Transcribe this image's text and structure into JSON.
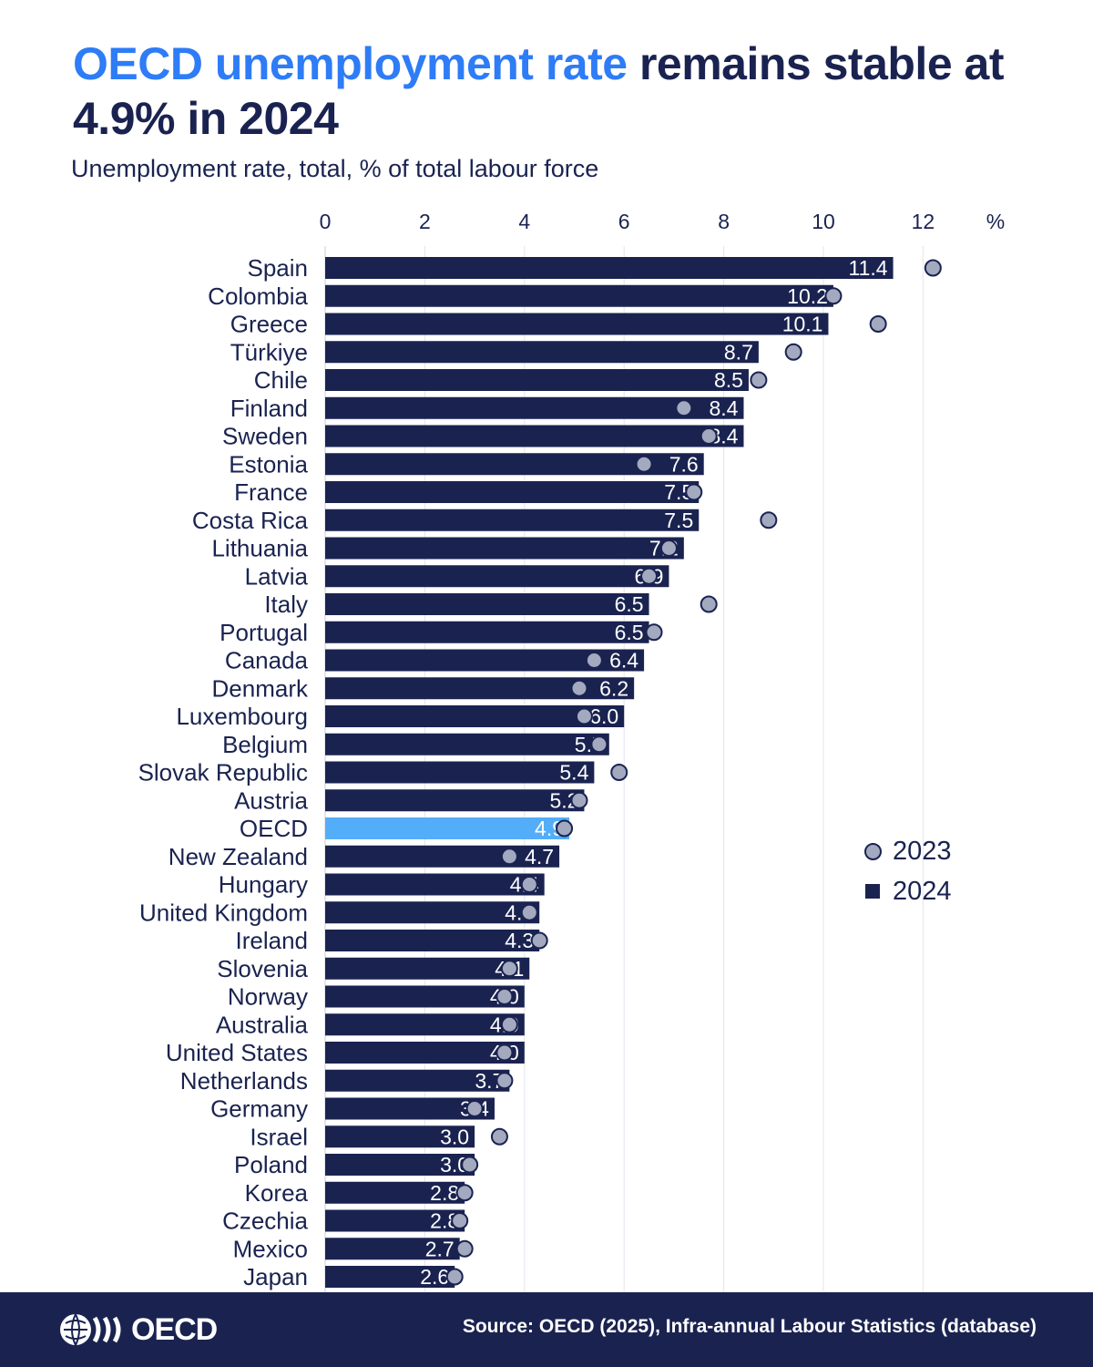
{
  "header": {
    "title_accent": "OECD unemployment rate",
    "title_rest": " remains stable at 4.9% in 2024",
    "subtitle": "Unemployment rate, total, % of total labour force"
  },
  "legend": {
    "item_2023": "2023",
    "item_2024": "2024"
  },
  "footer": {
    "logo_text": "OECD",
    "source": "Source: OECD (2025), Infra-annual Labour Statistics (database)"
  },
  "colors": {
    "bar": "#1a2350",
    "highlight_bar": "#54adf8",
    "dot_fill": "#a3a9bf",
    "accent": "#2e7cf6",
    "footer_bg": "#1a2350"
  },
  "chart_data": {
    "type": "bar",
    "orientation": "horizontal",
    "unit_label": "%",
    "xlim": [
      0,
      12
    ],
    "xticks": [
      0,
      2,
      4,
      6,
      8,
      10,
      12
    ],
    "grid": true,
    "legend_position": "right",
    "highlight": "OECD",
    "categories": [
      "Spain",
      "Colombia",
      "Greece",
      "Türkiye",
      "Chile",
      "Finland",
      "Sweden",
      "Estonia",
      "France",
      "Costa Rica",
      "Lithuania",
      "Latvia",
      "Italy",
      "Portugal",
      "Canada",
      "Denmark",
      "Luxembourg",
      "Belgium",
      "Slovak Republic",
      "Austria",
      "OECD",
      "New Zealand",
      "Hungary",
      "United Kingdom",
      "Ireland",
      "Slovenia",
      "Norway",
      "Australia",
      "United States",
      "Netherlands",
      "Germany",
      "Israel",
      "Poland",
      "Korea",
      "Czechia",
      "Mexico",
      "Japan"
    ],
    "series": [
      {
        "name": "2024",
        "kind": "bar",
        "values": [
          11.4,
          10.2,
          10.1,
          8.7,
          8.5,
          8.4,
          8.4,
          7.6,
          7.5,
          7.5,
          7.2,
          6.9,
          6.5,
          6.5,
          6.4,
          6.2,
          6.0,
          5.7,
          5.4,
          5.2,
          4.9,
          4.7,
          4.4,
          4.3,
          4.3,
          4.1,
          4.0,
          4.0,
          4.0,
          3.7,
          3.4,
          3.0,
          3.0,
          2.8,
          2.8,
          2.7,
          2.6
        ]
      },
      {
        "name": "2023",
        "kind": "dot",
        "values": [
          12.2,
          10.2,
          11.1,
          9.4,
          8.7,
          7.2,
          7.7,
          6.4,
          7.4,
          8.9,
          6.9,
          6.5,
          7.7,
          6.6,
          5.4,
          5.1,
          5.2,
          5.5,
          5.9,
          5.1,
          4.8,
          3.7,
          4.1,
          4.1,
          4.3,
          3.7,
          3.6,
          3.7,
          3.6,
          3.6,
          3.0,
          3.5,
          2.9,
          2.8,
          2.7,
          2.8,
          2.6
        ]
      }
    ]
  }
}
